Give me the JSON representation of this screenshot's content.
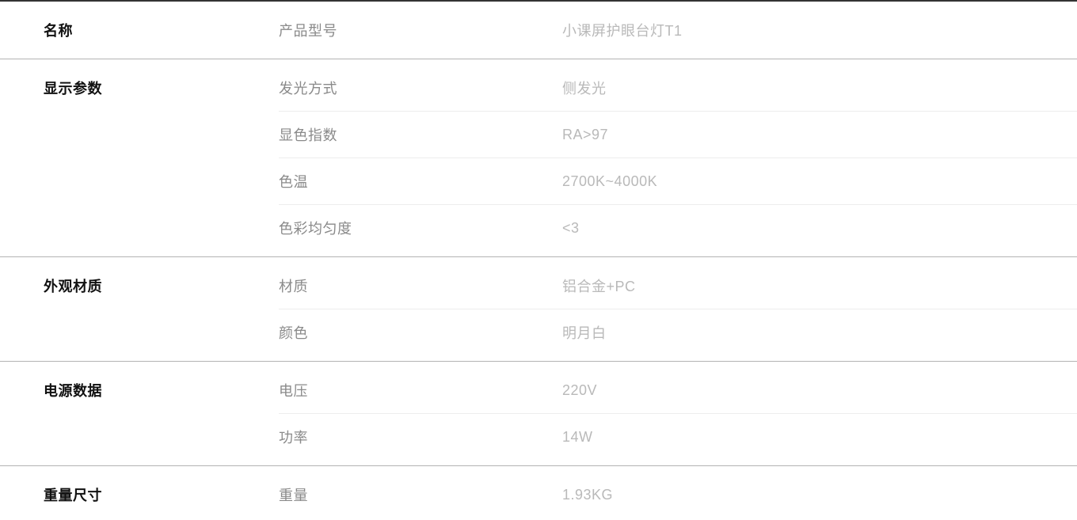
{
  "table": {
    "sections": [
      {
        "title": "名称",
        "rows": [
          {
            "label": "产品型号",
            "value": "小课屏护眼台灯T1"
          }
        ]
      },
      {
        "title": "显示参数",
        "rows": [
          {
            "label": "发光方式",
            "value": "侧发光"
          },
          {
            "label": "显色指数",
            "value": "RA>97"
          },
          {
            "label": "色温",
            "value": "2700K~4000K"
          },
          {
            "label": "色彩均匀度",
            "value": "<3"
          }
        ]
      },
      {
        "title": "外观材质",
        "rows": [
          {
            "label": "材质",
            "value": "铝合金+PC"
          },
          {
            "label": "颜色",
            "value": "明月白"
          }
        ]
      },
      {
        "title": "电源数据",
        "rows": [
          {
            "label": "电压",
            "value": "220V"
          },
          {
            "label": "功率",
            "value": "14W"
          }
        ]
      },
      {
        "title": "重量尺寸",
        "rows": [
          {
            "label": "重量",
            "value": "1.93KG"
          }
        ]
      }
    ],
    "colors": {
      "title_text": "#111111",
      "label_text": "#8a8a8a",
      "value_text": "#b9b9b9",
      "top_border": "#333333",
      "bottom_border": "#6e6e6e",
      "section_divider": "#b3b3b3",
      "row_divider": "#ededed",
      "background": "#ffffff"
    }
  }
}
